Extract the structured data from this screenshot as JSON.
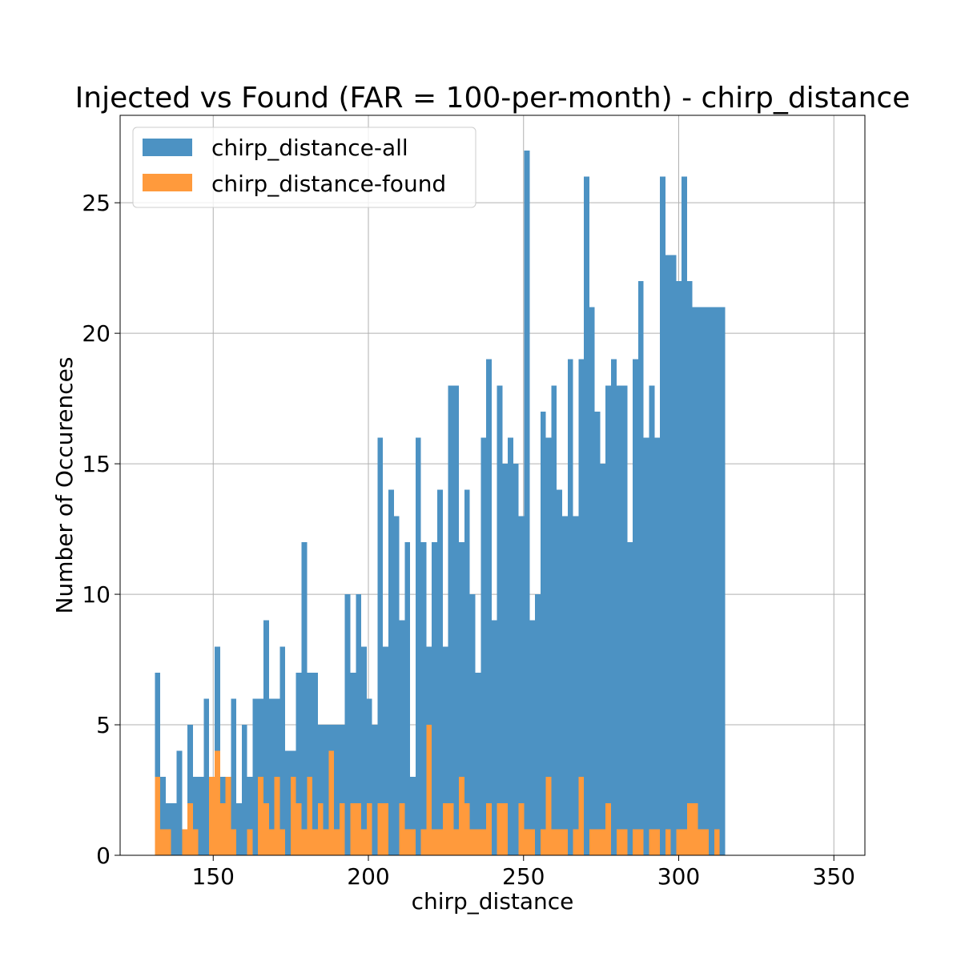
{
  "chart_data": {
    "type": "bar",
    "title": "Injected vs Found (FAR = 100-per-month) - chirp_distance",
    "xlabel": "chirp_distance",
    "ylabel": "Number of Occurences",
    "xlim": [
      120,
      360
    ],
    "ylim": [
      0,
      28.35
    ],
    "xticks": [
      150,
      200,
      250,
      300,
      350
    ],
    "yticks": [
      0,
      5,
      10,
      15,
      20,
      25
    ],
    "grid": true,
    "legend_position": "top-left",
    "series": [
      {
        "name": "chirp_distance-all",
        "color": "#4c92c3",
        "bin_start": 131.2,
        "bin_width": 1.75,
        "values": [
          7,
          3,
          2,
          2,
          4,
          1,
          5,
          3,
          3,
          6,
          2,
          8,
          3,
          2,
          6,
          2,
          5,
          3,
          6,
          6,
          9,
          6,
          6,
          8,
          4,
          4,
          7,
          12,
          7,
          7,
          5,
          5,
          5,
          5,
          5,
          10,
          7,
          10,
          8,
          6,
          5,
          16,
          8,
          14,
          13,
          9,
          12,
          3,
          16,
          12,
          8,
          12,
          14,
          8,
          18,
          18,
          12,
          14,
          10,
          7,
          16,
          19,
          9,
          18,
          15,
          16,
          15,
          13,
          27,
          9,
          10,
          17,
          16,
          18,
          14,
          13,
          19,
          13,
          19,
          26,
          21,
          17,
          15,
          18,
          19,
          18,
          18,
          12,
          19,
          22,
          16,
          18,
          16,
          26,
          23,
          23,
          22,
          26,
          22,
          21,
          21,
          21,
          21,
          21,
          21
        ]
      },
      {
        "name": "chirp_distance-found",
        "color": "#ff9a3c",
        "bin_start": 131.2,
        "bin_width": 1.75,
        "values": [
          3,
          1,
          1,
          0,
          0,
          1,
          2,
          1,
          0,
          0,
          3,
          4,
          2,
          3,
          1,
          0,
          0,
          1,
          0,
          3,
          2,
          1,
          3,
          1,
          0,
          3,
          2,
          1,
          3,
          1,
          2,
          1,
          4,
          1,
          2,
          0,
          2,
          2,
          1,
          2,
          0,
          2,
          2,
          0,
          0,
          2,
          1,
          1,
          0,
          1,
          5,
          1,
          1,
          2,
          2,
          1,
          3,
          2,
          1,
          1,
          1,
          2,
          0,
          2,
          2,
          0,
          0,
          2,
          1,
          1,
          0,
          1,
          3,
          1,
          1,
          1,
          0,
          1,
          3,
          0,
          1,
          1,
          1,
          2,
          0,
          1,
          1,
          0,
          1,
          1,
          0,
          1,
          1,
          0,
          1,
          0,
          1,
          1,
          2,
          2,
          1,
          1,
          0,
          1,
          0
        ]
      }
    ]
  }
}
